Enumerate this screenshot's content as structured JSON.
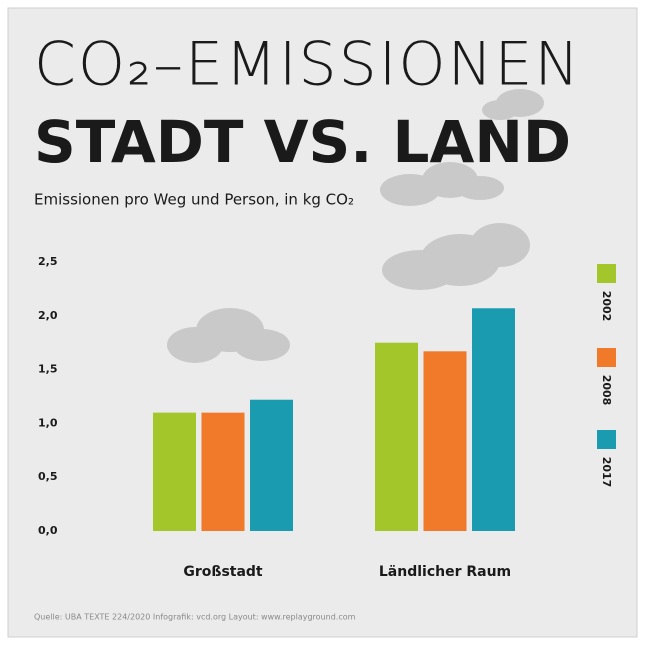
{
  "chart_data": {
    "type": "bar",
    "title": "CO₂–EMISSIONEN",
    "subtitle": "STADT VS. LAND",
    "y_label": "Emissionen pro Weg und Person, in kg CO₂",
    "categories": [
      "Großstadt",
      "Ländlicher Raum"
    ],
    "series": [
      {
        "name": "2002",
        "color": "#a3c62b",
        "values": [
          1.1,
          1.75
        ]
      },
      {
        "name": "2008",
        "color": "#f07a2a",
        "values": [
          1.1,
          1.67
        ]
      },
      {
        "name": "2017",
        "color": "#1a9bb0",
        "values": [
          1.22,
          2.07
        ]
      }
    ],
    "ylim": [
      0,
      2.5
    ],
    "yticks": [
      {
        "value": 0,
        "label": "0,0"
      },
      {
        "value": 0.5,
        "label": "0,5"
      },
      {
        "value": 1,
        "label": "1,0"
      },
      {
        "value": 1.5,
        "label": "1,5"
      },
      {
        "value": 2,
        "label": "2,0"
      },
      {
        "value": 2.5,
        "label": "2,5"
      }
    ],
    "legend_position": "right",
    "source": "Quelle: UBA TEXTE 224/2020  Infografik: vcd.org  Layout: www.replayground.com"
  }
}
